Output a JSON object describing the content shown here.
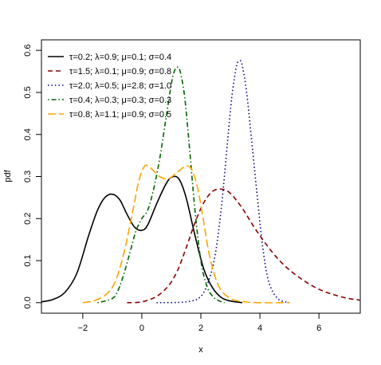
{
  "chart_data": {
    "type": "line",
    "title": "",
    "xlabel": "x",
    "ylabel": "pdf",
    "xlim": [
      -3.4,
      7.4
    ],
    "ylim": [
      -0.025,
      0.625
    ],
    "xticks": [
      -2,
      0,
      2,
      4,
      6
    ],
    "yticks": [
      0.0,
      0.1,
      0.2,
      0.3,
      0.4,
      0.5,
      0.6
    ],
    "grid": false,
    "legend_position": "top-left",
    "series": [
      {
        "name": "τ=0.2; λ=0.9; μ=0.1; σ=0.4",
        "color": "#000000",
        "dash": "solid",
        "x": [
          -3.4,
          -3.0,
          -2.6,
          -2.2,
          -1.8,
          -1.5,
          -1.25,
          -1.0,
          -0.75,
          -0.5,
          -0.25,
          0.0,
          0.2,
          0.5,
          0.8,
          1.0,
          1.25,
          1.5,
          1.8,
          2.1,
          2.4,
          2.7,
          3.0,
          3.4
        ],
        "y": [
          0.002,
          0.008,
          0.025,
          0.07,
          0.16,
          0.22,
          0.25,
          0.258,
          0.245,
          0.21,
          0.18,
          0.172,
          0.185,
          0.235,
          0.28,
          0.298,
          0.295,
          0.25,
          0.16,
          0.08,
          0.035,
          0.012,
          0.004,
          0.0
        ]
      },
      {
        "name": "τ=1.5; λ=0.1; μ=0.9; σ=0.8",
        "color": "#8b0000",
        "dash": "dashed",
        "x": [
          -0.5,
          0.0,
          0.5,
          0.9,
          1.2,
          1.5,
          1.8,
          2.1,
          2.4,
          2.7,
          3.0,
          3.4,
          3.8,
          4.2,
          4.6,
          5.0,
          5.5,
          6.0,
          6.5,
          7.0,
          7.4
        ],
        "y": [
          0.0,
          0.002,
          0.015,
          0.04,
          0.075,
          0.13,
          0.19,
          0.238,
          0.265,
          0.27,
          0.26,
          0.225,
          0.18,
          0.14,
          0.105,
          0.078,
          0.052,
          0.032,
          0.019,
          0.01,
          0.006
        ]
      },
      {
        "name": "τ=2.0; λ=0.5; μ=2.8; σ=1.0",
        "color": "#00008b",
        "dash": "dotted",
        "x": [
          0.5,
          1.5,
          2.0,
          2.3,
          2.5,
          2.7,
          2.9,
          3.05,
          3.2,
          3.3,
          3.4,
          3.55,
          3.7,
          3.9,
          4.1,
          4.3,
          4.6,
          5.0
        ],
        "y": [
          0.0,
          0.002,
          0.015,
          0.06,
          0.12,
          0.23,
          0.38,
          0.49,
          0.56,
          0.575,
          0.565,
          0.5,
          0.4,
          0.26,
          0.13,
          0.05,
          0.01,
          0.0
        ]
      },
      {
        "name": "τ=0.4; λ=0.3; μ=0.3; σ=0.3",
        "color": "#006400",
        "dash": "dotdash",
        "x": [
          -1.5,
          -1.0,
          -0.8,
          -0.6,
          -0.4,
          -0.2,
          0.0,
          0.2,
          0.4,
          0.6,
          0.8,
          1.0,
          1.1,
          1.2,
          1.3,
          1.45,
          1.6,
          1.8,
          2.0,
          2.2,
          2.4,
          2.6,
          2.8
        ],
        "y": [
          0.0,
          0.01,
          0.03,
          0.07,
          0.12,
          0.17,
          0.2,
          0.22,
          0.27,
          0.34,
          0.43,
          0.52,
          0.55,
          0.56,
          0.55,
          0.49,
          0.38,
          0.22,
          0.1,
          0.04,
          0.015,
          0.005,
          0.0
        ]
      },
      {
        "name": "τ=0.8; λ=1.1; μ=0.9; σ=0.5",
        "color": "#ffa500",
        "dash": "longdash",
        "x": [
          -2.0,
          -1.6,
          -1.2,
          -0.9,
          -0.6,
          -0.3,
          -0.1,
          0.1,
          0.3,
          0.6,
          0.9,
          1.2,
          1.5,
          1.7,
          1.9,
          2.1,
          2.3,
          2.6,
          3.0,
          3.5,
          4.0,
          5.0
        ],
        "y": [
          0.0,
          0.005,
          0.02,
          0.05,
          0.12,
          0.22,
          0.29,
          0.325,
          0.32,
          0.3,
          0.295,
          0.31,
          0.325,
          0.315,
          0.27,
          0.19,
          0.11,
          0.04,
          0.01,
          0.002,
          0.0,
          0.0
        ]
      }
    ]
  }
}
